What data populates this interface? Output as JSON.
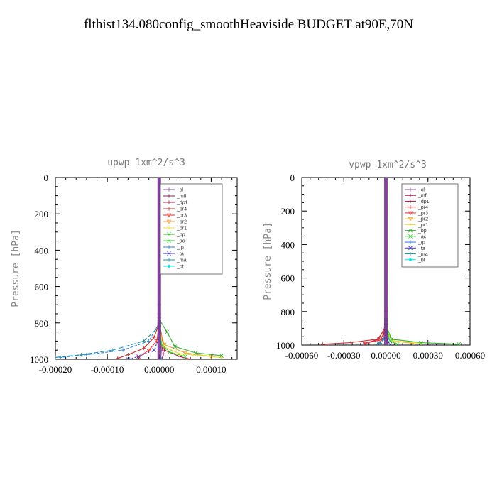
{
  "title": "flthist134.080config_smoothHeaviside  BUDGET at90E,70N",
  "colors": {
    "_cl": "#8a4f9e",
    "_mfl": "#a0185a",
    "_dp1": "#b02040",
    "_pr4": "#c83030",
    "_pr3": "#ee3030",
    "_pr2": "#f0a030",
    "_pr1": "#e8e030",
    "_bp": "#30b030",
    "_ac": "#40d040",
    "_tp": "#3080e0",
    "_ta": "#4040c0",
    "_ma": "#1a9aa8",
    "_bt": "#00e8f0"
  },
  "chart_data": [
    {
      "type": "line",
      "title": "upwp   1xm^2/s^3",
      "ylabel": "Pressure [hPa]",
      "xlabel": "",
      "xlim": [
        -0.0002,
        0.00015
      ],
      "ylim": [
        1000,
        0
      ],
      "xticks": [
        -0.0002,
        -0.0001,
        0,
        0.0001
      ],
      "xtick_labels": [
        "-0.00020",
        "-0.00010",
        "0.00000",
        "0.00010"
      ],
      "yticks": [
        0,
        200,
        400,
        600,
        800,
        1000
      ],
      "ytick_labels": [
        "0",
        "200",
        "400",
        "600",
        "800",
        "1000"
      ],
      "legend": "top-right",
      "series": [
        {
          "name": "_cl",
          "points": [
            [
              0,
              0
            ],
            [
              0,
              700
            ],
            [
              2e-06,
              850
            ],
            [
              4e-06,
              950
            ],
            [
              3e-06,
              1000
            ]
          ]
        },
        {
          "name": "_mfl",
          "points": [
            [
              0,
              0
            ],
            [
              0,
              750
            ],
            [
              3e-06,
              900
            ],
            [
              8e-06,
              970
            ],
            [
              5e-06,
              1000
            ]
          ]
        },
        {
          "name": "_dp1",
          "points": [
            [
              0,
              0
            ],
            [
              0,
              800
            ],
            [
              1e-05,
              950
            ],
            [
              4e-05,
              985
            ],
            [
              6e-05,
              1000
            ]
          ]
        },
        {
          "name": "_pr4",
          "points": [
            [
              0,
              0
            ],
            [
              0,
              800
            ],
            [
              -1e-05,
              880
            ],
            [
              -3e-05,
              940
            ],
            [
              -6e-05,
              975
            ],
            [
              -8e-05,
              995
            ]
          ]
        },
        {
          "name": "_pr3",
          "points": [
            [
              0,
              0
            ],
            [
              0,
              820
            ],
            [
              -5e-06,
              900
            ],
            [
              -2e-05,
              950
            ],
            [
              -4e-05,
              990
            ]
          ]
        },
        {
          "name": "_pr2",
          "points": [
            [
              0,
              0
            ],
            [
              0,
              830
            ],
            [
              1e-05,
              920
            ],
            [
              5e-05,
              965
            ],
            [
              0.0001,
              985
            ]
          ]
        },
        {
          "name": "_pr1",
          "points": [
            [
              0,
              0
            ],
            [
              0,
              840
            ],
            [
              8e-06,
              930
            ],
            [
              4e-05,
              970
            ],
            [
              0.00012,
              990
            ]
          ]
        },
        {
          "name": "_bp",
          "points": [
            [
              0,
              0
            ],
            [
              0,
              780
            ],
            [
              1.5e-05,
              850
            ],
            [
              3e-05,
              930
            ],
            [
              7e-05,
              965
            ],
            [
              0.00012,
              980
            ]
          ]
        },
        {
          "name": "_ac",
          "points": [
            [
              0,
              0
            ],
            [
              0,
              850
            ],
            [
              5e-06,
              920
            ],
            [
              2e-05,
              960
            ],
            [
              5e-05,
              985
            ]
          ]
        },
        {
          "name": "_tp",
          "points": [
            [
              0,
              0
            ],
            [
              0,
              800
            ],
            [
              -2e-05,
              900
            ],
            [
              -7e-05,
              950
            ],
            [
              -0.00014,
              975
            ],
            [
              -0.00019,
              990
            ]
          ]
        },
        {
          "name": "_ta",
          "points": [
            [
              0,
              0
            ],
            [
              0,
              880
            ],
            [
              -1e-05,
              950
            ],
            [
              -4e-05,
              985
            ],
            [
              -6e-05,
              1000
            ]
          ]
        },
        {
          "name": "_ma",
          "points": [
            [
              0,
              0
            ],
            [
              0,
              820
            ],
            [
              -3e-05,
              900
            ],
            [
              -9e-05,
              950
            ],
            [
              -0.00015,
              975
            ],
            [
              -0.0002,
              990
            ]
          ]
        },
        {
          "name": "_bt",
          "points": [
            [
              0,
              0
            ],
            [
              0,
              700
            ],
            [
              2e-06,
              900
            ],
            [
              3e-06,
              1000
            ]
          ]
        }
      ]
    },
    {
      "type": "line",
      "title": "vpwp   1xm^2/s^3",
      "ylabel": "Pressure [hPa]",
      "xlabel": "",
      "xlim": [
        -0.0006,
        0.0006
      ],
      "ylim": [
        1000,
        0
      ],
      "xticks": [
        -0.0006,
        -0.0003,
        0,
        0.0003,
        0.0006
      ],
      "xtick_labels": [
        "-0.00060",
        "-0.00030",
        "0.00000",
        "0.00030",
        "0.00060"
      ],
      "yticks": [
        0,
        200,
        400,
        600,
        800,
        1000
      ],
      "ytick_labels": [
        "0",
        "200",
        "400",
        "600",
        "800",
        "1000"
      ],
      "legend": "top-right",
      "series": [
        {
          "name": "_cl",
          "points": [
            [
              0,
              0
            ],
            [
              0,
              800
            ],
            [
              5e-06,
              950
            ],
            [
              8e-06,
              1000
            ]
          ]
        },
        {
          "name": "_mfl",
          "points": [
            [
              0,
              0
            ],
            [
              0,
              850
            ],
            [
              -2e-05,
              960
            ],
            [
              -5e-05,
              990
            ]
          ]
        },
        {
          "name": "_dp1",
          "points": [
            [
              0,
              0
            ],
            [
              0,
              880
            ],
            [
              -5e-05,
              965
            ],
            [
              -0.00015,
              990
            ]
          ]
        },
        {
          "name": "_pr4",
          "points": [
            [
              0,
              0
            ],
            [
              0,
              900
            ],
            [
              -6e-05,
              965
            ],
            [
              -0.00025,
              985
            ],
            [
              -0.00045,
              995
            ]
          ]
        },
        {
          "name": "_pr3",
          "points": [
            [
              0,
              0
            ],
            [
              0,
              900
            ],
            [
              -4e-05,
              970
            ],
            [
              -0.00015,
              990
            ]
          ]
        },
        {
          "name": "_pr2",
          "points": [
            [
              0,
              0
            ],
            [
              0,
              920
            ],
            [
              5e-05,
              975
            ],
            [
              0.0002,
              990
            ]
          ]
        },
        {
          "name": "_pr1",
          "points": [
            [
              0,
              0
            ],
            [
              0,
              920
            ],
            [
              6e-05,
              975
            ],
            [
              0.00025,
              990
            ]
          ]
        },
        {
          "name": "_bp",
          "points": [
            [
              0,
              0
            ],
            [
              0,
              880
            ],
            [
              4e-05,
              965
            ],
            [
              0.00025,
              985
            ],
            [
              0.00052,
              995
            ]
          ]
        },
        {
          "name": "_ac",
          "points": [
            [
              0,
              0
            ],
            [
              0,
              850
            ],
            [
              1e-05,
              930
            ],
            [
              3e-05,
              975
            ],
            [
              8e-05,
              995
            ]
          ]
        },
        {
          "name": "_tp",
          "points": [
            [
              0,
              0
            ],
            [
              0,
              900
            ],
            [
              -1e-05,
              960
            ],
            [
              -4e-05,
              990
            ]
          ]
        },
        {
          "name": "_ta",
          "points": [
            [
              0,
              0
            ],
            [
              0,
              920
            ],
            [
              1e-05,
              970
            ],
            [
              3e-05,
              995
            ]
          ]
        },
        {
          "name": "_ma",
          "points": [
            [
              0,
              0
            ],
            [
              0,
              900
            ],
            [
              -2e-05,
              970
            ],
            [
              -6e-05,
              995
            ]
          ]
        },
        {
          "name": "_bt",
          "points": [
            [
              0,
              0
            ],
            [
              0,
              900
            ],
            [
              2e-06,
              1000
            ]
          ]
        }
      ]
    }
  ]
}
